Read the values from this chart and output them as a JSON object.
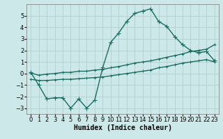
{
  "xlabel": "Humidex (Indice chaleur)",
  "background_color": "#cce8e8",
  "grid_color": "#aacccc",
  "line_color": "#1a6b60",
  "xlim": [
    -0.5,
    23.5
  ],
  "ylim": [
    -3.5,
    6.0
  ],
  "yticks": [
    -3,
    -2,
    -1,
    0,
    1,
    2,
    3,
    4,
    5
  ],
  "xticks": [
    0,
    1,
    2,
    3,
    4,
    5,
    6,
    7,
    8,
    9,
    10,
    11,
    12,
    13,
    14,
    15,
    16,
    17,
    18,
    19,
    20,
    21,
    22,
    23
  ],
  "line_main_x": [
    0,
    1,
    2,
    3,
    4,
    5,
    6,
    7,
    8,
    9,
    10,
    11,
    12,
    13,
    14,
    15,
    16,
    17,
    18,
    19,
    20,
    21,
    22,
    23
  ],
  "line_main_y": [
    0.1,
    -1.0,
    -2.2,
    -2.1,
    -2.1,
    -3.0,
    -2.2,
    -3.0,
    -2.3,
    0.5,
    2.7,
    3.5,
    4.5,
    5.2,
    5.4,
    5.6,
    4.5,
    4.1,
    3.2,
    2.5,
    2.0,
    1.8,
    1.9,
    1.1
  ],
  "line_upper_x": [
    0,
    1,
    2,
    3,
    4,
    5,
    6,
    7,
    8,
    9,
    10,
    11,
    12,
    13,
    14,
    15,
    16,
    17,
    18,
    19,
    20,
    21,
    22,
    23
  ],
  "line_upper_y": [
    0.05,
    -0.15,
    -0.05,
    0.0,
    0.1,
    0.1,
    0.2,
    0.2,
    0.3,
    0.35,
    0.5,
    0.6,
    0.75,
    0.9,
    1.0,
    1.1,
    1.25,
    1.4,
    1.55,
    1.7,
    1.9,
    2.0,
    2.1,
    2.5
  ],
  "line_lower_x": [
    0,
    1,
    2,
    3,
    4,
    5,
    6,
    7,
    8,
    9,
    10,
    11,
    12,
    13,
    14,
    15,
    16,
    17,
    18,
    19,
    20,
    21,
    22,
    23
  ],
  "line_lower_y": [
    -0.5,
    -0.6,
    -0.6,
    -0.55,
    -0.5,
    -0.5,
    -0.45,
    -0.4,
    -0.35,
    -0.3,
    -0.2,
    -0.1,
    0.0,
    0.1,
    0.2,
    0.3,
    0.5,
    0.6,
    0.75,
    0.9,
    1.0,
    1.1,
    1.2,
    1.0
  ],
  "marker_size": 3,
  "line_width": 1.0,
  "font_size_label": 7,
  "font_size_tick": 6
}
